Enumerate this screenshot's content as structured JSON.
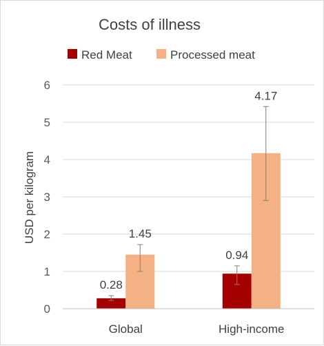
{
  "chart_data": {
    "type": "bar",
    "title": "Costs of illness",
    "xlabel": "",
    "ylabel": "USD per kilogram",
    "categories": [
      "Global",
      "High-income"
    ],
    "series": [
      {
        "name": "Red Meat",
        "color": "#a50000",
        "values": [
          0.28,
          0.94
        ],
        "labels": [
          "0.28",
          "0.94"
        ],
        "error_low": [
          0.22,
          0.65
        ],
        "error_high": [
          0.35,
          1.15
        ]
      },
      {
        "name": "Processed meat",
        "color": "#f4b183",
        "values": [
          1.45,
          4.17
        ],
        "labels": [
          "1.45",
          "4.17"
        ],
        "error_low": [
          1.0,
          2.9
        ],
        "error_high": [
          1.72,
          5.42
        ]
      }
    ],
    "ylim": [
      0,
      6
    ],
    "yticks": [
      "0",
      "1",
      "2",
      "3",
      "4",
      "5",
      "6"
    ],
    "grid": true,
    "legend_position": "top"
  }
}
